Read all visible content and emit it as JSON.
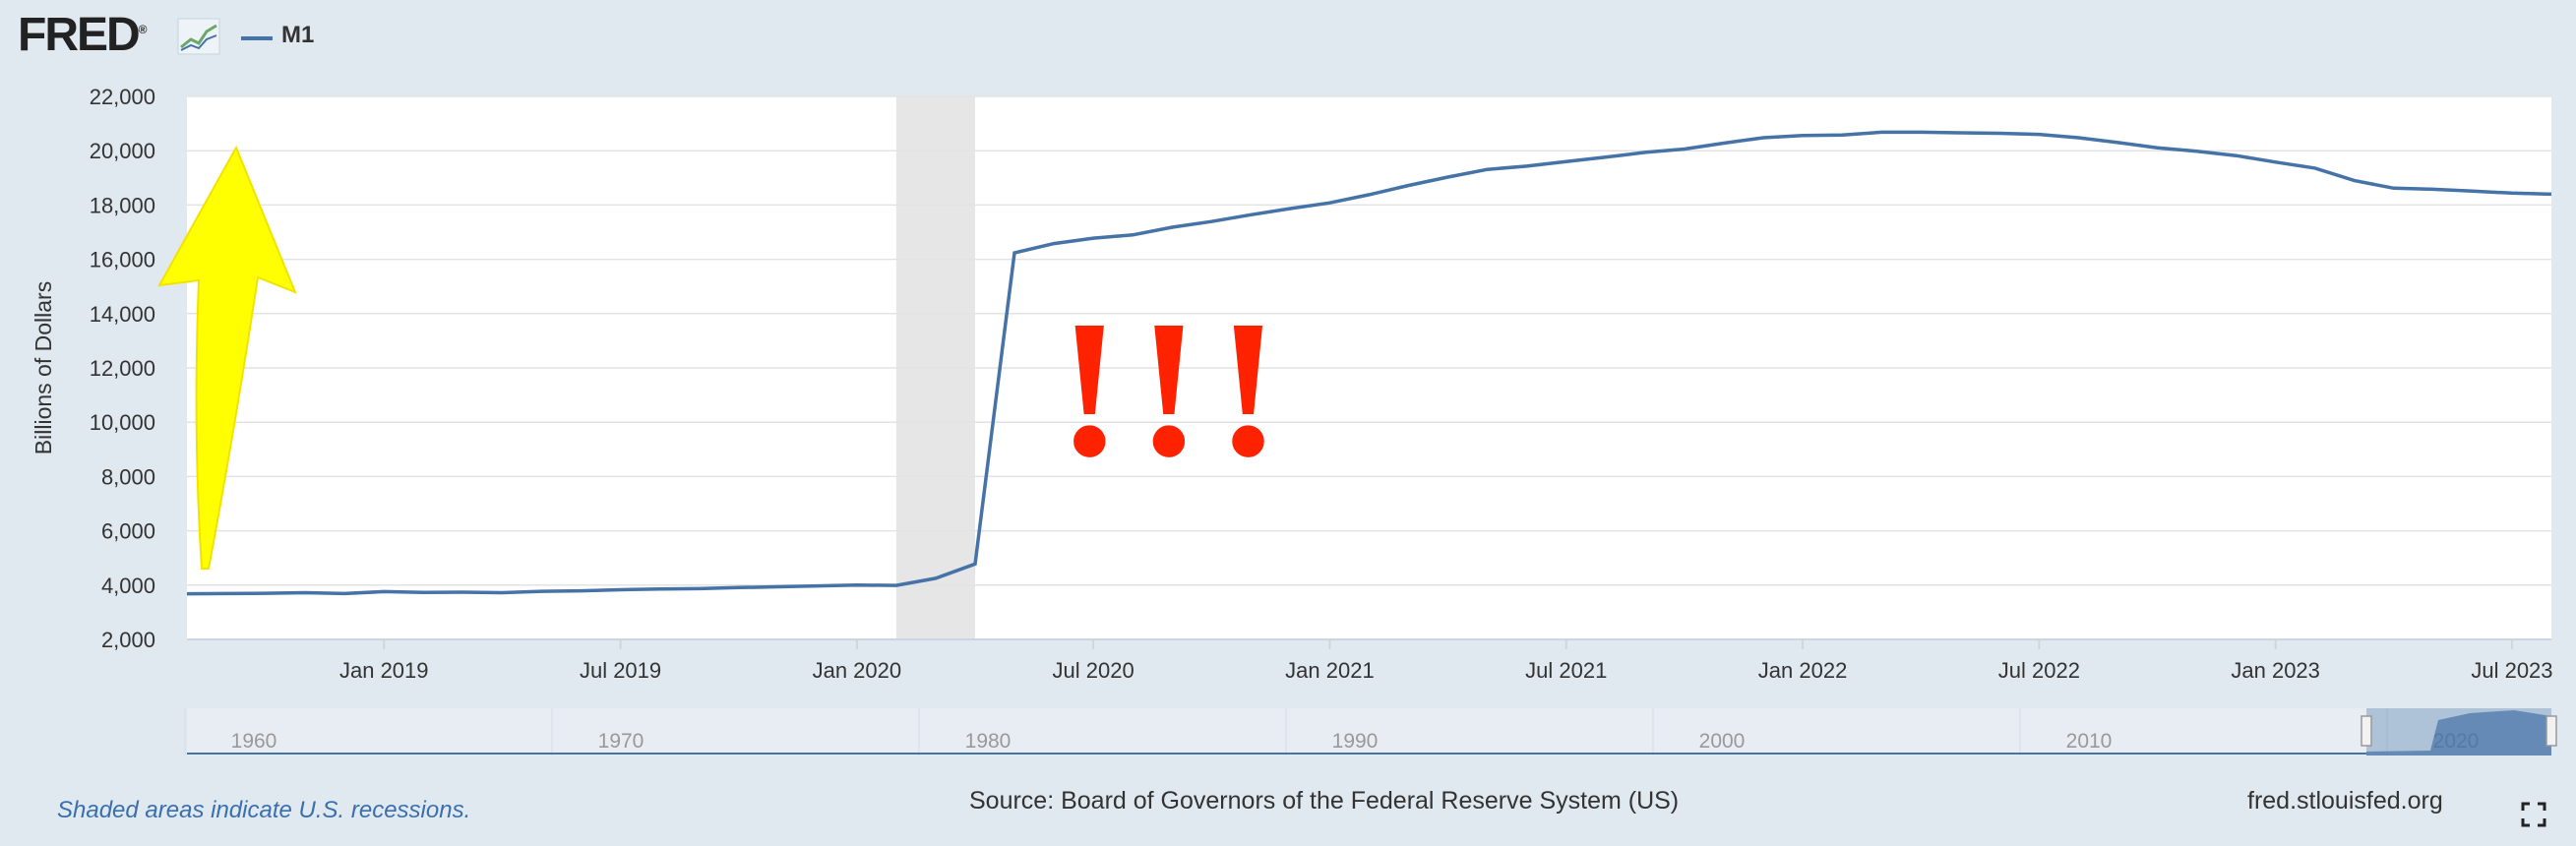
{
  "header": {
    "logo_text": "FRED",
    "logo_mark": "®",
    "legend_label": "M1"
  },
  "footer": {
    "recession_note": "Shaded areas indicate U.S. recessions.",
    "source": "Source: Board of Governors of the Federal Reserve System (US)",
    "site": "fred.stlouisfed.org"
  },
  "annotations": {
    "exclamation": "!!!",
    "exclamation_color": "#ff2200",
    "arrow_color": "#ffff00"
  },
  "colors": {
    "series": "#4572a7",
    "recession": "#e6e6e6",
    "background": "#e1e9f0"
  },
  "chart_data": {
    "type": "line",
    "ylabel": "Billions of Dollars",
    "ylim": [
      2000,
      22000
    ],
    "y_ticks": [
      "2,000",
      "4,000",
      "6,000",
      "8,000",
      "10,000",
      "12,000",
      "14,000",
      "16,000",
      "18,000",
      "20,000",
      "22,000"
    ],
    "y_tick_values": [
      2000,
      4000,
      6000,
      8000,
      10000,
      12000,
      14000,
      16000,
      18000,
      20000,
      22000
    ],
    "xlim": [
      "2018-08",
      "2023-08"
    ],
    "x_ticks": [
      {
        "label": "Jan 2019",
        "date": "2019-01"
      },
      {
        "label": "Jul 2019",
        "date": "2019-07"
      },
      {
        "label": "Jan 2020",
        "date": "2020-01"
      },
      {
        "label": "Jul 2020",
        "date": "2020-07"
      },
      {
        "label": "Jan 2021",
        "date": "2021-01"
      },
      {
        "label": "Jul 2021",
        "date": "2021-07"
      },
      {
        "label": "Jan 2022",
        "date": "2022-01"
      },
      {
        "label": "Jul 2022",
        "date": "2022-07"
      },
      {
        "label": "Jan 2023",
        "date": "2023-01"
      },
      {
        "label": "Jul 2023",
        "date": "2023-07"
      }
    ],
    "grid": true,
    "recessions": [
      {
        "start": "2020-02",
        "end": "2020-04"
      }
    ],
    "series": [
      {
        "name": "M1",
        "points": [
          [
            "2018-08",
            3680
          ],
          [
            "2018-09",
            3690
          ],
          [
            "2018-10",
            3700
          ],
          [
            "2018-11",
            3720
          ],
          [
            "2018-12",
            3690
          ],
          [
            "2019-01",
            3760
          ],
          [
            "2019-02",
            3730
          ],
          [
            "2019-03",
            3740
          ],
          [
            "2019-04",
            3720
          ],
          [
            "2019-05",
            3770
          ],
          [
            "2019-06",
            3790
          ],
          [
            "2019-07",
            3830
          ],
          [
            "2019-08",
            3860
          ],
          [
            "2019-09",
            3870
          ],
          [
            "2019-10",
            3910
          ],
          [
            "2019-11",
            3940
          ],
          [
            "2019-12",
            3970
          ],
          [
            "2020-01",
            4000
          ],
          [
            "2020-02",
            3990
          ],
          [
            "2020-03",
            4250
          ],
          [
            "2020-04",
            4780
          ],
          [
            "2020-05",
            16240
          ],
          [
            "2020-06",
            16580
          ],
          [
            "2020-07",
            16780
          ],
          [
            "2020-08",
            16900
          ],
          [
            "2020-09",
            17180
          ],
          [
            "2020-10",
            17390
          ],
          [
            "2020-11",
            17640
          ],
          [
            "2020-12",
            17870
          ],
          [
            "2021-01",
            18080
          ],
          [
            "2021-02",
            18380
          ],
          [
            "2021-03",
            18720
          ],
          [
            "2021-04",
            19030
          ],
          [
            "2021-05",
            19310
          ],
          [
            "2021-06",
            19430
          ],
          [
            "2021-07",
            19600
          ],
          [
            "2021-08",
            19760
          ],
          [
            "2021-09",
            19940
          ],
          [
            "2021-10",
            20060
          ],
          [
            "2021-11",
            20280
          ],
          [
            "2021-12",
            20480
          ],
          [
            "2022-01",
            20560
          ],
          [
            "2022-02",
            20580
          ],
          [
            "2022-03",
            20680
          ],
          [
            "2022-04",
            20680
          ],
          [
            "2022-05",
            20660
          ],
          [
            "2022-06",
            20640
          ],
          [
            "2022-07",
            20600
          ],
          [
            "2022-08",
            20480
          ],
          [
            "2022-09",
            20300
          ],
          [
            "2022-10",
            20110
          ],
          [
            "2022-11",
            19980
          ],
          [
            "2022-12",
            19820
          ],
          [
            "2023-01",
            19580
          ],
          [
            "2023-02",
            19360
          ],
          [
            "2023-03",
            18900
          ],
          [
            "2023-04",
            18620
          ],
          [
            "2023-05",
            18580
          ],
          [
            "2023-06",
            18510
          ],
          [
            "2023-07",
            18440
          ],
          [
            "2023-08",
            18400
          ]
        ]
      }
    ],
    "navigator": {
      "x_ticks": [
        "1960",
        "1970",
        "1980",
        "1990",
        "2000",
        "2010",
        "2020"
      ]
    }
  }
}
